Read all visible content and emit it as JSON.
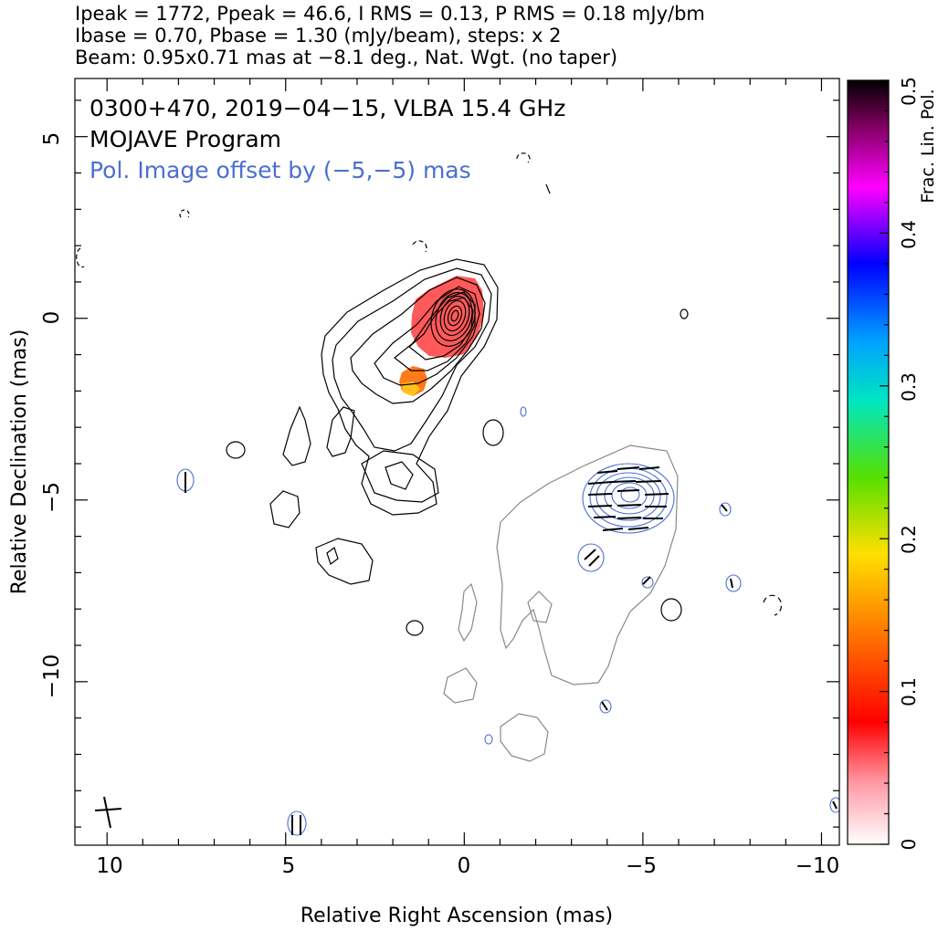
{
  "header": {
    "line1": "Ipeak = 1772, Ppeak = 46.6, I RMS = 0.13, P RMS = 0.18 mJy/bm",
    "line2": "Ibase = 0.70, Pbase = 1.30 (mJy/beam), steps: x 2",
    "line3": "Beam: 0.95x0.71 mas at −8.1 deg., Nat. Wgt. (no taper)"
  },
  "annotations": {
    "source": "0300+470, 2019−04−15, VLBA 15.4 GHz",
    "program": "MOJAVE Program",
    "offset_note": "Pol. Image offset by (−5,−5) mas"
  },
  "colors": {
    "total_intensity_contour": "#000000",
    "pol_contour": "#4a6fd0",
    "outer_contour": "#888888",
    "offset_note": "#4a6fd0"
  },
  "chart_data": {
    "type": "heatmap",
    "title": "",
    "xlabel": "Relative Right Ascension (mas)",
    "ylabel": "Relative Declination (mas)",
    "xlim": [
      10.9,
      -10.5
    ],
    "ylim": [
      -14.5,
      6.6
    ],
    "x_ticks": [
      10,
      5,
      0,
      -5,
      -10
    ],
    "x_tick_labels": [
      "10",
      "5",
      "0",
      "−5",
      "−10"
    ],
    "y_ticks": [
      5,
      0,
      -5,
      -10
    ],
    "y_tick_labels": [
      "5",
      "0",
      "−5",
      "−10"
    ],
    "colorbar": {
      "label": "Frac. Lin. Pol.",
      "range": [
        0,
        0.5
      ],
      "ticks": [
        0,
        0.1,
        0.2,
        0.3,
        0.4,
        0.5
      ],
      "tick_labels": [
        "0",
        "0.1",
        "0.2",
        "0.3",
        "0.4",
        "0.5"
      ]
    },
    "core": {
      "ra": 0,
      "dec": 0,
      "contour_levels": 11
    },
    "jet_components": [
      {
        "ra": 1.3,
        "dec": -1.8
      },
      {
        "ra": 1.7,
        "dec": -4.4
      },
      {
        "ra": 3.5,
        "dec": -6.7
      }
    ],
    "pol_image": {
      "offset_ra": -5,
      "offset_dec": -5,
      "peak_ra": -4.9,
      "peak_dec": -5.0
    },
    "frac_pol_regions": [
      {
        "ra": 0.1,
        "dec": 0.2,
        "frac_pol": 0.08
      },
      {
        "ra": 1.3,
        "dec": -1.8,
        "frac_pol": 0.16
      }
    ],
    "beam": {
      "major_mas": 0.95,
      "minor_mas": 0.71,
      "pa_deg": -8.1
    }
  }
}
